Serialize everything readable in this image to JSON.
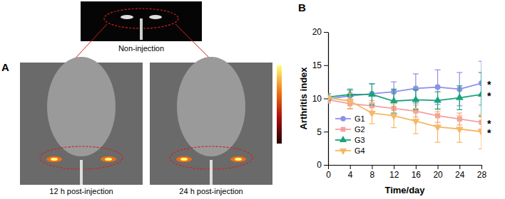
{
  "figure": {
    "panel_labels": [
      "A",
      "B"
    ],
    "image_captions": [
      "Non-injection",
      "12 h post-injection",
      "24 h post-injection"
    ]
  },
  "chart_data": {
    "type": "line",
    "x_label": "Time/day",
    "y_label": "Arthritis index",
    "x": [
      0,
      4,
      8,
      12,
      16,
      20,
      24,
      28
    ],
    "xlim": [
      0,
      28
    ],
    "xticks": [
      0,
      4,
      8,
      12,
      16,
      20,
      24,
      28
    ],
    "ylim": [
      0,
      20
    ],
    "yticks": [
      0,
      5,
      10,
      15,
      20
    ],
    "grid": false,
    "legend": "lower left",
    "series": [
      {
        "name": "G1",
        "color": "#8f8fe8",
        "marker": "circle",
        "values": [
          9.9,
          10.4,
          10.7,
          11.0,
          11.5,
          11.7,
          11.4,
          12.3
        ],
        "errors": [
          0.4,
          0.8,
          1.5,
          1.5,
          2.2,
          2.6,
          2.5,
          3.3
        ]
      },
      {
        "name": "G2",
        "color": "#f4a0a0",
        "marker": "square",
        "values": [
          9.8,
          9.2,
          8.9,
          8.5,
          8.1,
          7.4,
          6.9,
          6.4
        ],
        "errors": [
          0.5,
          0.7,
          0.8,
          0.9,
          0.9,
          1.0,
          0.9,
          1.0
        ]
      },
      {
        "name": "G3",
        "color": "#1aa37a",
        "marker": "triangle-up",
        "values": [
          10.2,
          10.6,
          10.6,
          9.6,
          9.8,
          9.7,
          10.1,
          10.6
        ],
        "errors": [
          0.5,
          0.8,
          1.6,
          1.8,
          1.5,
          1.3,
          1.8,
          3.3
        ]
      },
      {
        "name": "G4",
        "color": "#f5b865",
        "marker": "triangle-down",
        "values": [
          10.1,
          9.6,
          7.8,
          7.4,
          6.6,
          5.7,
          5.4,
          5.0
        ],
        "errors": [
          0.3,
          1.2,
          1.6,
          1.8,
          1.9,
          2.3,
          2.0,
          2.6
        ]
      }
    ],
    "annotations": [
      "*",
      "*",
      "*",
      "*"
    ]
  }
}
